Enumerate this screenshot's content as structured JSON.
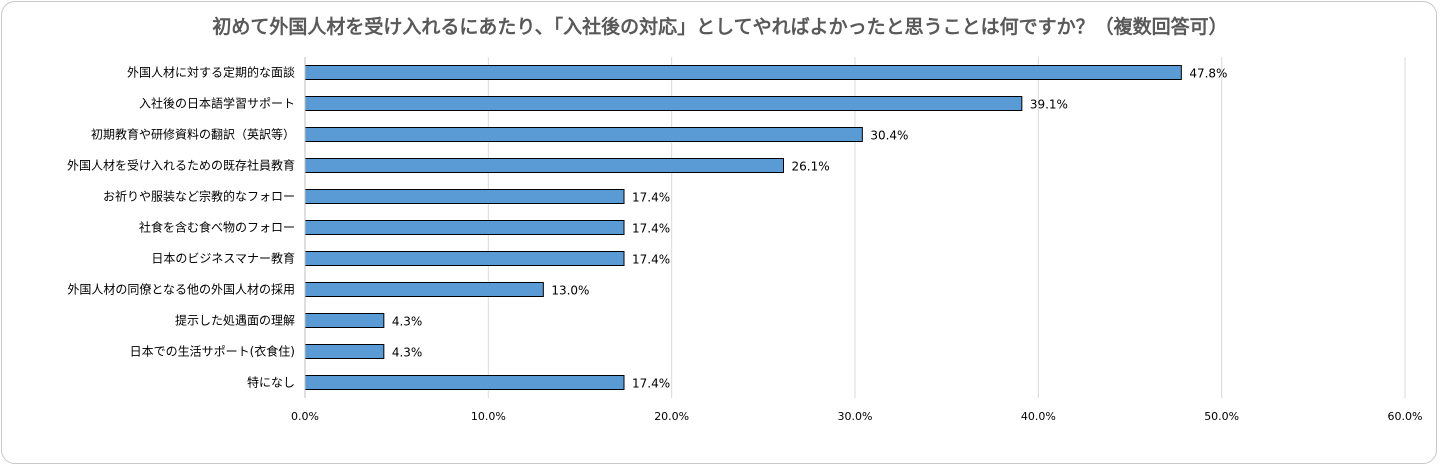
{
  "chart_data": {
    "type": "bar",
    "orientation": "horizontal",
    "title": "初めて外国人材を受け入れるにあたり、「入社後の対応」としてやればよかったと思うことは何ですか？（複数回答可）",
    "categories": [
      "外国人材に対する定期的な面談",
      "入社後の日本語学習サポート",
      "初期教育や研修資料の翻訳（英訳等）",
      "外国人材を受け入れるための既存社員教育",
      "お祈りや服装など宗教的なフォロー",
      "社食を含む食べ物のフォロー",
      "日本のビジネスマナー教育",
      "外国人材の同僚となる他の外国人材の採用",
      "提示した処遇面の理解",
      "日本での生活サポート(衣食住)",
      "特になし"
    ],
    "values": [
      47.8,
      39.1,
      30.4,
      26.1,
      17.4,
      17.4,
      17.4,
      13.0,
      4.3,
      4.3,
      17.4
    ],
    "value_labels": [
      "47.8%",
      "39.1%",
      "30.4%",
      "26.1%",
      "17.4%",
      "17.4%",
      "17.4%",
      "13.0%",
      "4.3%",
      "4.3%",
      "17.4%"
    ],
    "xlim": [
      0,
      60
    ],
    "x_ticks": [
      "0.0%",
      "10.0%",
      "20.0%",
      "30.0%",
      "40.0%",
      "50.0%",
      "60.0%"
    ],
    "grid": true,
    "bar_color": "#5b9bd5",
    "bar_border_color": "#000000"
  }
}
